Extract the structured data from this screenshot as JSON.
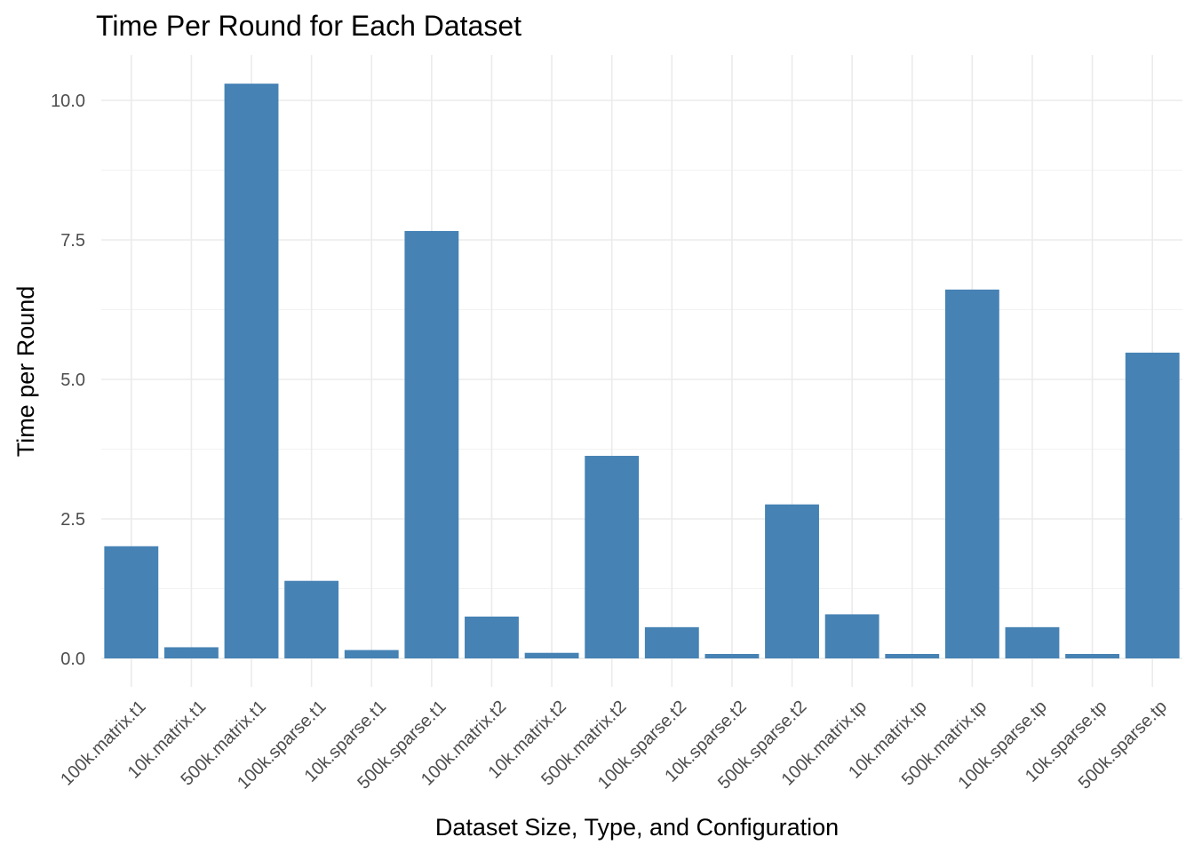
{
  "chart_data": {
    "type": "bar",
    "title": "Time Per Round for Each Dataset",
    "xlabel": "Dataset Size, Type, and Configuration",
    "ylabel": "Time per Round",
    "categories": [
      "100k.matrix.t1",
      "10k.matrix.t1",
      "500k.matrix.t1",
      "100k.sparse.t1",
      "10k.sparse.t1",
      "500k.sparse.t1",
      "100k.matrix.t2",
      "10k.matrix.t2",
      "500k.matrix.t2",
      "100k.sparse.t2",
      "10k.sparse.t2",
      "500k.sparse.t2",
      "100k.matrix.tp",
      "10k.matrix.tp",
      "500k.matrix.tp",
      "100k.sparse.tp",
      "10k.sparse.tp",
      "500k.sparse.tp"
    ],
    "values": [
      2.01,
      0.2,
      10.3,
      1.39,
      0.15,
      7.66,
      0.75,
      0.1,
      3.63,
      0.56,
      0.08,
      2.76,
      0.79,
      0.08,
      6.61,
      0.56,
      0.08,
      5.48
    ],
    "ylim": [
      0,
      10.3
    ],
    "yticks": [
      0.0,
      2.5,
      5.0,
      7.5,
      10.0
    ],
    "ytick_labels": [
      "0.0",
      "2.5",
      "5.0",
      "7.5",
      "10.0"
    ],
    "grid": true,
    "legend": "none",
    "bar_color": "#4682b4"
  }
}
